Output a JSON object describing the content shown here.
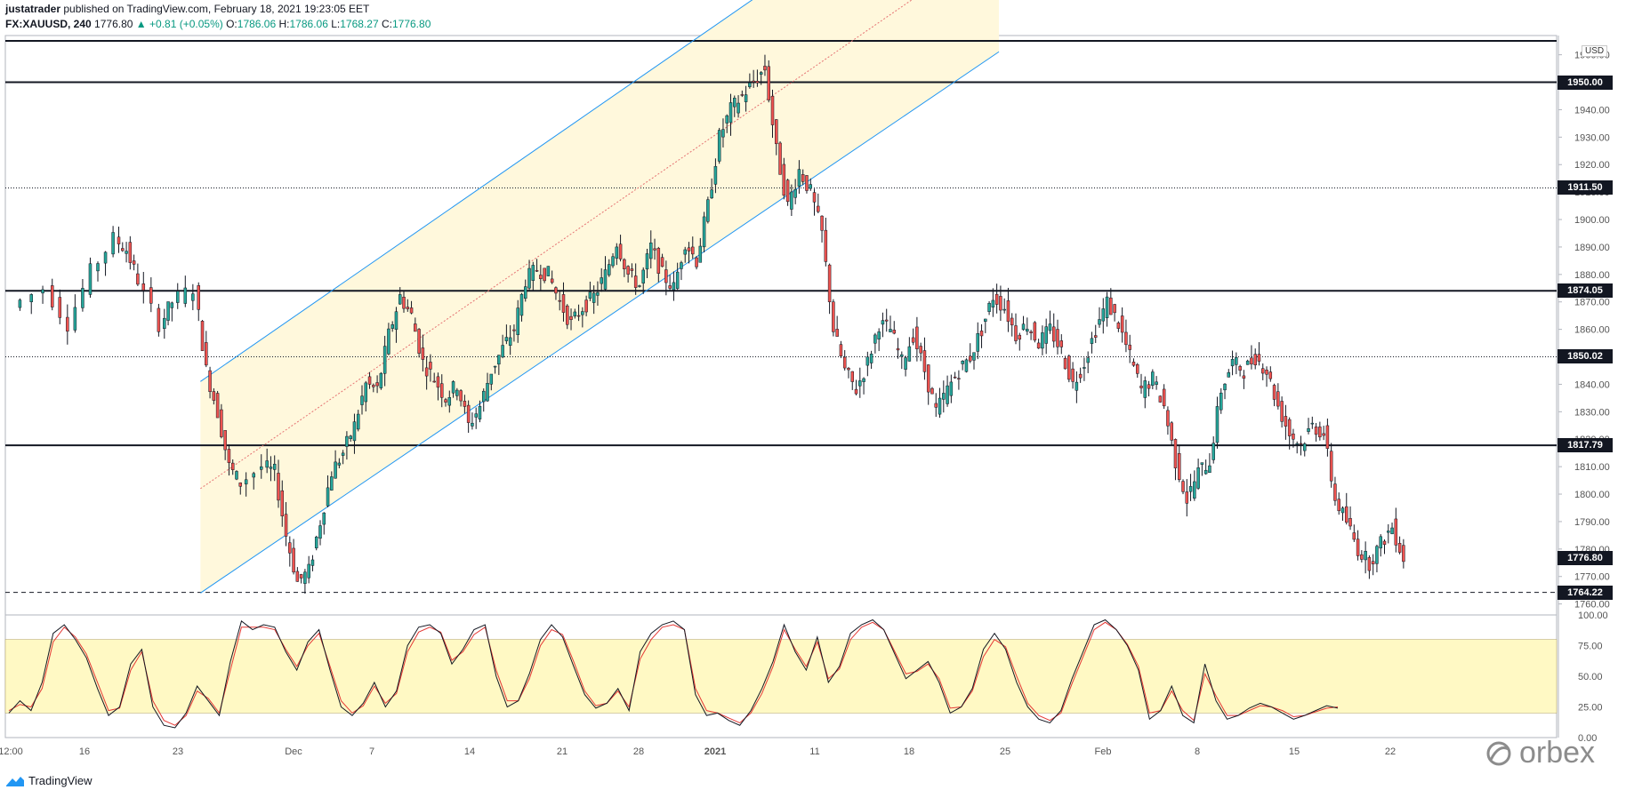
{
  "header": {
    "author": "justatrader",
    "published": "published on TradingView.com, February 18, 2021 19:23:05 EET",
    "symbol": "FX:XAUUSD, 240",
    "last": "1776.80",
    "change": "+0.81 (+0.05%)",
    "o_label": "O:",
    "o": "1786.06",
    "h_label": "H:",
    "h": "1786.06",
    "l_label": "L:",
    "l": "1768.27",
    "c_label": "C:",
    "c": "1776.80"
  },
  "currency": "USD",
  "footer": {
    "brand": "TradingView"
  },
  "watermark": "orbex",
  "colors": {
    "bull": "#26a69a",
    "bear": "#ef5350",
    "channel": "#2196f3",
    "stoch_k": "#131722",
    "stoch_d": "#e53935"
  },
  "chart_data": {
    "type": "candlestick",
    "title": "FX:XAUUSD, 240",
    "yaxis": {
      "ticks": [
        "1760.00",
        "1770.00",
        "1780.00",
        "1790.00",
        "1800.00",
        "1810.00",
        "1820.00",
        "1830.00",
        "1840.00",
        "1850.00",
        "1860.00",
        "1870.00",
        "1880.00",
        "1890.00",
        "1900.00",
        "1910.00",
        "1920.00",
        "1930.00",
        "1940.00",
        "1950.00",
        "1960.00"
      ],
      "range": [
        1756,
        1967
      ]
    },
    "xaxis": {
      "ticks": [
        "12:00",
        "16",
        "23",
        "Dec",
        "7",
        "14",
        "21",
        "28",
        "2021",
        "11",
        "18",
        "25",
        "Feb",
        "8",
        "15",
        "22"
      ]
    },
    "horizontal_levels": [
      {
        "label": "1950.00",
        "value": 1950.0,
        "style": "solid"
      },
      {
        "label": "1911.50",
        "value": 1911.5,
        "style": "dotted"
      },
      {
        "label": "1874.05",
        "value": 1874.05,
        "style": "solid"
      },
      {
        "label": "1850.02",
        "value": 1850.02,
        "style": "dotted"
      },
      {
        "label": "1817.79",
        "value": 1817.79,
        "style": "solid"
      },
      {
        "label": "1764.22",
        "value": 1764.22,
        "style": "dashed"
      }
    ],
    "current_price": "1776.80",
    "series_path": [
      [
        0,
        1868
      ],
      [
        3,
        1875
      ],
      [
        5,
        1862
      ],
      [
        7,
        1881
      ],
      [
        9,
        1893
      ],
      [
        10,
        1889
      ],
      [
        11,
        1878
      ],
      [
        13,
        1862
      ],
      [
        14,
        1870
      ],
      [
        16,
        1875
      ],
      [
        17,
        1845
      ],
      [
        18,
        1830
      ],
      [
        19,
        1810
      ],
      [
        20,
        1804
      ],
      [
        22,
        1810
      ],
      [
        23,
        1808
      ],
      [
        24,
        1785
      ],
      [
        25,
        1768
      ],
      [
        26,
        1772
      ],
      [
        27,
        1790
      ],
      [
        28,
        1808
      ],
      [
        29,
        1815
      ],
      [
        30,
        1825
      ],
      [
        31,
        1840
      ],
      [
        32,
        1838
      ],
      [
        33,
        1858
      ],
      [
        34,
        1872
      ],
      [
        35,
        1865
      ],
      [
        36,
        1848
      ],
      [
        37,
        1842
      ],
      [
        38,
        1835
      ],
      [
        39,
        1840
      ],
      [
        40,
        1825
      ],
      [
        41,
        1832
      ],
      [
        42,
        1845
      ],
      [
        43,
        1853
      ],
      [
        44,
        1860
      ],
      [
        45,
        1878
      ],
      [
        46,
        1882
      ],
      [
        47,
        1880
      ],
      [
        48,
        1870
      ],
      [
        49,
        1862
      ],
      [
        50,
        1868
      ],
      [
        51,
        1872
      ],
      [
        52,
        1880
      ],
      [
        53,
        1892
      ],
      [
        54,
        1880
      ],
      [
        55,
        1876
      ],
      [
        56,
        1890
      ],
      [
        57,
        1880
      ],
      [
        58,
        1875
      ],
      [
        59,
        1892
      ],
      [
        60,
        1885
      ],
      [
        61,
        1905
      ],
      [
        62,
        1930
      ],
      [
        63,
        1940
      ],
      [
        64,
        1945
      ],
      [
        65,
        1950
      ],
      [
        66,
        1955
      ],
      [
        67,
        1925
      ],
      [
        68,
        1905
      ],
      [
        69,
        1918
      ],
      [
        70,
        1910
      ],
      [
        71,
        1895
      ],
      [
        72,
        1860
      ],
      [
        73,
        1845
      ],
      [
        74,
        1838
      ],
      [
        75,
        1848
      ],
      [
        76,
        1862
      ],
      [
        77,
        1860
      ],
      [
        78,
        1848
      ],
      [
        79,
        1858
      ],
      [
        80,
        1845
      ],
      [
        81,
        1830
      ],
      [
        82,
        1838
      ],
      [
        83,
        1845
      ],
      [
        84,
        1850
      ],
      [
        85,
        1860
      ],
      [
        86,
        1872
      ],
      [
        87,
        1868
      ],
      [
        88,
        1858
      ],
      [
        89,
        1862
      ],
      [
        90,
        1855
      ],
      [
        91,
        1860
      ],
      [
        92,
        1852
      ],
      [
        93,
        1840
      ],
      [
        94,
        1848
      ],
      [
        95,
        1860
      ],
      [
        96,
        1870
      ],
      [
        97,
        1862
      ],
      [
        98,
        1850
      ],
      [
        99,
        1838
      ],
      [
        100,
        1842
      ],
      [
        101,
        1832
      ],
      [
        102,
        1812
      ],
      [
        103,
        1798
      ],
      [
        104,
        1808
      ],
      [
        105,
        1812
      ],
      [
        106,
        1838
      ],
      [
        107,
        1848
      ],
      [
        108,
        1845
      ],
      [
        109,
        1850
      ],
      [
        110,
        1845
      ],
      [
        111,
        1832
      ],
      [
        112,
        1822
      ],
      [
        113,
        1818
      ],
      [
        114,
        1825
      ],
      [
        115,
        1822
      ],
      [
        116,
        1798
      ],
      [
        117,
        1790
      ],
      [
        118,
        1780
      ],
      [
        119,
        1775
      ],
      [
        120,
        1782
      ],
      [
        121,
        1788
      ],
      [
        122,
        1776.8
      ]
    ],
    "channel": {
      "lower": [
        [
          17,
          1764
        ],
        [
          71,
          1910
        ]
      ],
      "upper": [
        [
          17,
          1841
        ],
        [
          71,
          1990
        ]
      ],
      "mid": [
        [
          17,
          1802
        ],
        [
          71,
          1950
        ]
      ]
    },
    "stochastic": {
      "yaxis": {
        "ticks": [
          "0.00",
          "25.00",
          "50.00",
          "75.00",
          "100.00"
        ],
        "range": [
          0,
          100
        ]
      },
      "band": [
        20,
        80
      ],
      "k": [
        20,
        30,
        22,
        45,
        85,
        92,
        80,
        65,
        40,
        18,
        25,
        60,
        72,
        25,
        10,
        8,
        20,
        42,
        30,
        18,
        62,
        95,
        88,
        92,
        90,
        70,
        55,
        78,
        88,
        55,
        25,
        18,
        28,
        45,
        25,
        38,
        75,
        90,
        92,
        85,
        60,
        72,
        88,
        92,
        50,
        25,
        30,
        52,
        80,
        92,
        82,
        58,
        35,
        24,
        28,
        40,
        22,
        70,
        85,
        92,
        95,
        88,
        35,
        18,
        20,
        14,
        10,
        22,
        40,
        62,
        92,
        70,
        55,
        82,
        45,
        58,
        85,
        92,
        96,
        88,
        68,
        48,
        55,
        62,
        45,
        20,
        25,
        40,
        72,
        85,
        72,
        45,
        25,
        15,
        12,
        22,
        48,
        70,
        92,
        96,
        88,
        75,
        55,
        15,
        22,
        42,
        18,
        12,
        60,
        30,
        15,
        18,
        24,
        28,
        25,
        20,
        15,
        18,
        22,
        26,
        24
      ],
      "d": [
        22,
        27,
        25,
        40,
        78,
        90,
        82,
        68,
        45,
        22,
        24,
        55,
        70,
        30,
        14,
        10,
        18,
        38,
        32,
        20,
        55,
        90,
        90,
        90,
        88,
        72,
        58,
        75,
        85,
        58,
        30,
        20,
        26,
        42,
        28,
        36,
        70,
        86,
        90,
        86,
        63,
        70,
        84,
        90,
        55,
        30,
        30,
        48,
        75,
        88,
        84,
        62,
        38,
        26,
        28,
        38,
        25,
        64,
        80,
        90,
        92,
        88,
        40,
        22,
        20,
        16,
        12,
        20,
        36,
        58,
        88,
        72,
        58,
        78,
        48,
        56,
        80,
        90,
        94,
        88,
        70,
        52,
        54,
        60,
        48,
        24,
        25,
        38,
        66,
        80,
        74,
        50,
        28,
        18,
        14,
        20,
        44,
        66,
        88,
        94,
        88,
        76,
        58,
        20,
        22,
        38,
        22,
        14,
        52,
        34,
        18,
        18,
        22,
        26,
        25,
        22,
        17,
        18,
        21,
        24,
        25
      ]
    }
  }
}
